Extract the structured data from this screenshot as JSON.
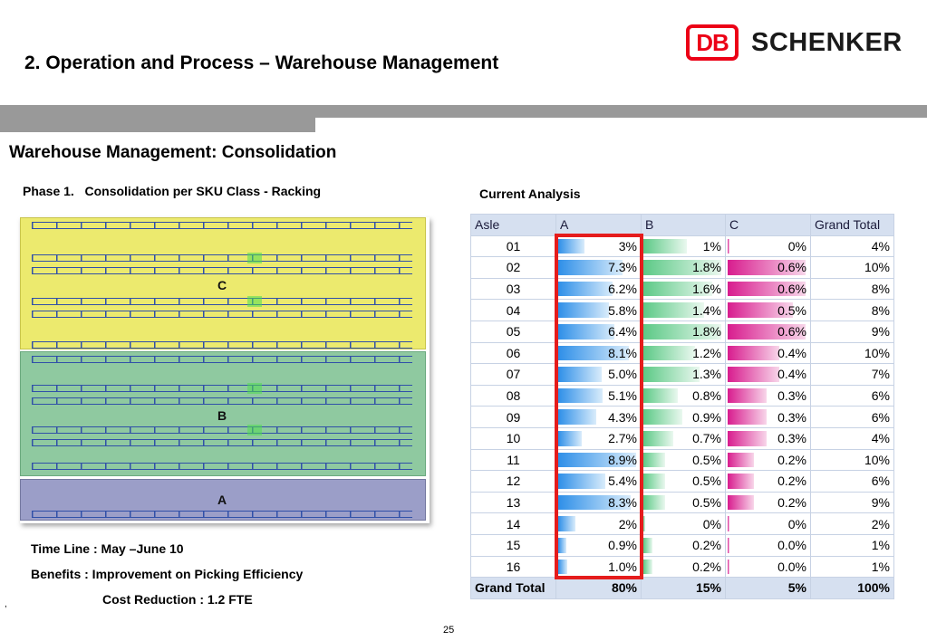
{
  "header": {
    "title": "2. Operation and Process – Warehouse Management",
    "logo": {
      "mark": "DB",
      "name": "SCHENKER",
      "brand_color": "#ec0016"
    }
  },
  "section_title": "Warehouse Management: Consolidation",
  "phase_label": "Phase 1.   Consolidation per SKU Class - Racking",
  "layout": {
    "zone_c": "C",
    "zone_b": "B",
    "zone_a": "A",
    "zone_colors": {
      "c": "#ecea6e",
      "b": "#8fc9a0",
      "a": "#9b9ec8"
    }
  },
  "notes": {
    "timeline": "Time Line : May –June 10",
    "benefits": "Benefits : Improvement on Picking Efficiency",
    "cost": "Cost Reduction : 1.2 FTE"
  },
  "analysis": {
    "title": "Current Analysis",
    "headers": [
      "Asle",
      "A",
      "B",
      "C",
      "Grand Total"
    ],
    "rows": [
      {
        "aisle": "01",
        "a": "3%",
        "b": "1%",
        "c": "0%",
        "total": "4%"
      },
      {
        "aisle": "02",
        "a": "7.3%",
        "b": "1.8%",
        "c": "0.6%",
        "total": "10%"
      },
      {
        "aisle": "03",
        "a": "6.2%",
        "b": "1.6%",
        "c": "0.6%",
        "total": "8%"
      },
      {
        "aisle": "04",
        "a": "5.8%",
        "b": "1.4%",
        "c": "0.5%",
        "total": "8%"
      },
      {
        "aisle": "05",
        "a": "6.4%",
        "b": "1.8%",
        "c": "0.6%",
        "total": "9%"
      },
      {
        "aisle": "06",
        "a": "8.1%",
        "b": "1.2%",
        "c": "0.4%",
        "total": "10%"
      },
      {
        "aisle": "07",
        "a": "5.0%",
        "b": "1.3%",
        "c": "0.4%",
        "total": "7%"
      },
      {
        "aisle": "08",
        "a": "5.1%",
        "b": "0.8%",
        "c": "0.3%",
        "total": "6%"
      },
      {
        "aisle": "09",
        "a": "4.3%",
        "b": "0.9%",
        "c": "0.3%",
        "total": "6%"
      },
      {
        "aisle": "10",
        "a": "2.7%",
        "b": "0.7%",
        "c": "0.3%",
        "total": "4%"
      },
      {
        "aisle": "11",
        "a": "8.9%",
        "b": "0.5%",
        "c": "0.2%",
        "total": "10%"
      },
      {
        "aisle": "12",
        "a": "5.4%",
        "b": "0.5%",
        "c": "0.2%",
        "total": "6%"
      },
      {
        "aisle": "13",
        "a": "8.3%",
        "b": "0.5%",
        "c": "0.2%",
        "total": "9%"
      },
      {
        "aisle": "14",
        "a": "2%",
        "b": "0%",
        "c": "0%",
        "total": "2%"
      },
      {
        "aisle": "15",
        "a": "0.9%",
        "b": "0.2%",
        "c": "0.0%",
        "total": "1%"
      },
      {
        "aisle": "16",
        "a": "1.0%",
        "b": "0.2%",
        "c": "0.0%",
        "total": "1%"
      }
    ],
    "grand_total": {
      "label": "Grand Total",
      "a": "80%",
      "b": "15%",
      "c": "5%",
      "total": "100%"
    },
    "bar_colors": {
      "a": "#2e8fe8",
      "b": "#5cc986",
      "c": "#d81c8e"
    },
    "highlight_color": "#e51c1c"
  },
  "page_number": "25",
  "stray_mark": ","
}
